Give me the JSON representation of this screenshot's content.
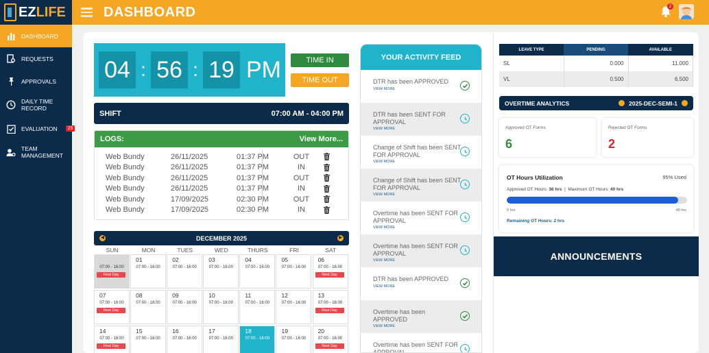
{
  "app": {
    "logo_prefix": "EZ",
    "logo_rest": "LIFE",
    "page_title": "DASHBOARD",
    "notification_count": "2"
  },
  "sidebar": {
    "items": [
      {
        "label": "DASHBOARD",
        "icon": "bar-chart-icon"
      },
      {
        "label": "REQUESTS",
        "icon": "document-search-icon"
      },
      {
        "label": "APPROVALS",
        "icon": "pin-icon"
      },
      {
        "label": "DAILY TIME RECORD",
        "icon": "clock-icon"
      },
      {
        "label": "EVALUATION",
        "icon": "clipboard-check-icon",
        "badge": "25"
      },
      {
        "label": "TEAM MANAGEMENT",
        "icon": "user-gear-icon"
      }
    ]
  },
  "clock": {
    "hours": "04",
    "minutes": "56",
    "seconds": "19",
    "ampm": "PM",
    "time_in_label": "TIME IN",
    "time_out_label": "TIME OUT"
  },
  "shift": {
    "label": "SHIFT",
    "value": "07:00 AM - 04:00 PM"
  },
  "logs": {
    "title": "LOGS:",
    "view_more": "View More...",
    "rows": [
      {
        "source": "Web Bundy",
        "date": "26/11/2025",
        "time": "01:37 PM",
        "type": "OUT"
      },
      {
        "source": "Web Bundy",
        "date": "26/11/2025",
        "time": "01:37 PM",
        "type": "IN"
      },
      {
        "source": "Web Bundy",
        "date": "26/11/2025",
        "time": "01:37 PM",
        "type": "OUT"
      },
      {
        "source": "Web Bundy",
        "date": "26/11/2025",
        "time": "01:37 PM",
        "type": "IN"
      },
      {
        "source": "Web Bundy",
        "date": "17/09/2025",
        "time": "02:30 PM",
        "type": "OUT"
      },
      {
        "source": "Web Bundy",
        "date": "17/09/2025",
        "time": "02:30 PM",
        "type": "IN"
      }
    ]
  },
  "calendar": {
    "month": "DECEMBER 2025",
    "days": [
      "SUN",
      "MON",
      "TUES",
      "WED",
      "THURS",
      "FRI",
      "SAT"
    ],
    "schedule": "07:00 - 16:00",
    "rest_label": "Rest Day",
    "weeks": [
      [
        "",
        "01",
        "02",
        "03",
        "04",
        "05",
        "06"
      ],
      [
        "07",
        "08",
        "09",
        "10",
        "11",
        "12",
        "13"
      ],
      [
        "14",
        "15",
        "16",
        "17",
        "18",
        "19",
        "20"
      ]
    ],
    "today": "18"
  },
  "feed": {
    "title": "YOUR ACTIVITY FEED",
    "view_more": "VIEW MORE",
    "items": [
      {
        "text": "DTR has been APPROVED",
        "status": "approved"
      },
      {
        "text": "DTR has been SENT FOR APPROVAL",
        "status": "pending"
      },
      {
        "text": "Change of Shift has been SENT FOR APPROVAL",
        "status": "pending"
      },
      {
        "text": "Change of Shift has been SENT FOR APPROVAL",
        "status": "pending"
      },
      {
        "text": "Overtime has been SENT FOR APPROVAL",
        "status": "pending"
      },
      {
        "text": "Overtime has been SENT FOR APPROVAL",
        "status": "pending"
      },
      {
        "text": "DTR has been APPROVED",
        "status": "approved"
      },
      {
        "text": "Overtime has been APPROVED",
        "status": "approved"
      },
      {
        "text": "Overtime has been SENT FOR APPROVAL",
        "status": "pending"
      }
    ]
  },
  "leave": {
    "headers": [
      "LEAVE TYPE",
      "PENDING",
      "AVAILABLE"
    ],
    "rows": [
      {
        "type": "SL",
        "pending": "0.000",
        "available": "11.000"
      },
      {
        "type": "VL",
        "pending": "0.500",
        "available": "6.500"
      }
    ]
  },
  "overtime": {
    "title": "OVERTIME ANALYTICS",
    "period": "2025-DEC-SEMI-1",
    "approved_label": "Approved OT Forms",
    "approved_value": "6",
    "rejected_label": "Rejected OT Forms",
    "rejected_value": "2"
  },
  "utilization": {
    "title": "OT Hours Utilization",
    "pct_label": "95% Used",
    "approved_label": "Approved OT Hours:",
    "approved_hours": "38 hrs",
    "max_label": "Maximum OT Hours:",
    "max_hours": "40 hrs",
    "min_tick": "0 hrs",
    "max_tick": "40 hrs",
    "remaining": "Remaining OT Hours: 2 hrs",
    "fraction": 0.95
  },
  "announcements": {
    "title": "ANNOUNCEMENTS"
  },
  "colors": {
    "navy": "#0c2b4a",
    "orange": "#f5a623",
    "teal": "#1fb3cc",
    "green": "#2e8b3e",
    "red": "#e31e24",
    "blue": "#1d5ed6"
  }
}
